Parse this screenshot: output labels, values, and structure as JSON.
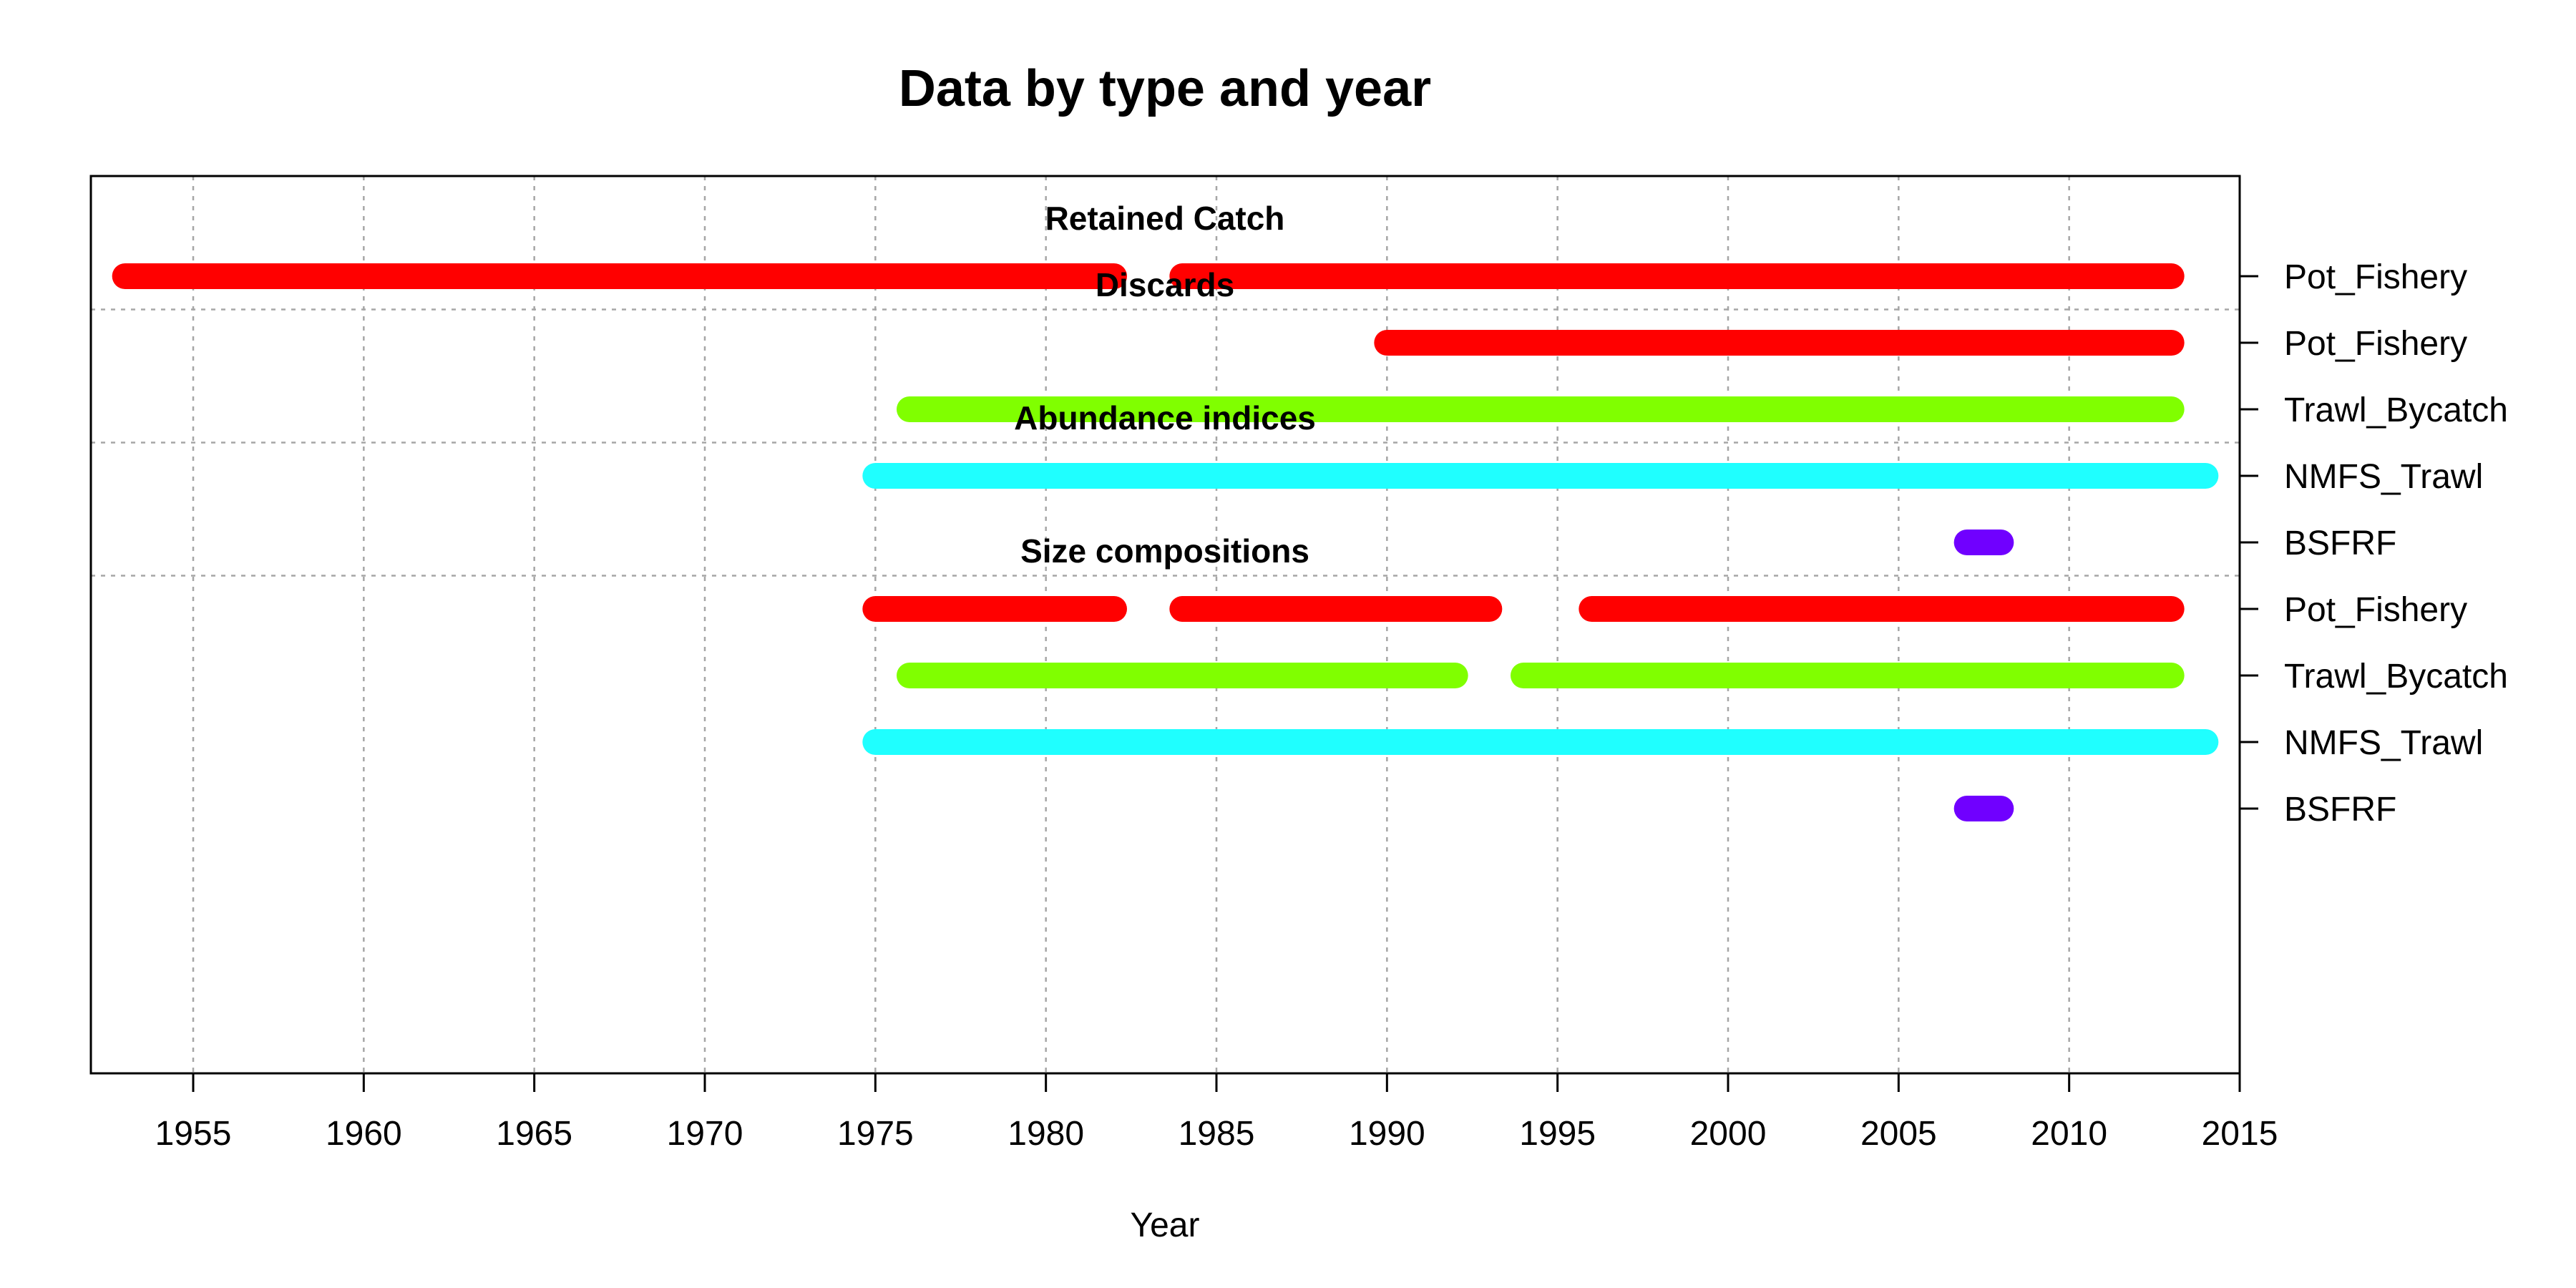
{
  "chart_data": {
    "type": "bar",
    "title": "Data by type and year",
    "xlabel": "Year",
    "ylabel": "",
    "xlim": [
      1952,
      2015
    ],
    "x_ticks": [
      1955,
      1960,
      1965,
      1970,
      1975,
      1980,
      1985,
      1990,
      1995,
      2000,
      2005,
      2010,
      2015
    ],
    "grid": true,
    "colors": {
      "Pot_Fishery": "#ff0000",
      "Trawl_Bycatch": "#80ff00",
      "NMFS_Trawl": "#1fffff",
      "BSFRF": "#7000ff"
    },
    "sections": [
      {
        "title": "Retained Catch",
        "rows": [
          {
            "label": "Pot_Fishery",
            "segments": [
              [
                1953,
                1982
              ],
              [
                1984,
                2013
              ]
            ]
          }
        ]
      },
      {
        "title": "Discards",
        "rows": [
          {
            "label": "Pot_Fishery",
            "segments": [
              [
                1990,
                2013
              ]
            ]
          },
          {
            "label": "Trawl_Bycatch",
            "segments": [
              [
                1976,
                2013
              ]
            ]
          }
        ]
      },
      {
        "title": "Abundance indices",
        "rows": [
          {
            "label": "NMFS_Trawl",
            "segments": [
              [
                1975,
                2014
              ]
            ]
          },
          {
            "label": "BSFRF",
            "segments": [
              [
                2007,
                2008
              ]
            ]
          }
        ]
      },
      {
        "title": "Size compositions",
        "rows": [
          {
            "label": "Pot_Fishery",
            "segments": [
              [
                1975,
                1982
              ],
              [
                1984,
                1993
              ],
              [
                1996,
                2013
              ]
            ]
          },
          {
            "label": "Trawl_Bycatch",
            "segments": [
              [
                1976,
                1992
              ],
              [
                1994,
                2013
              ]
            ]
          },
          {
            "label": "NMFS_Trawl",
            "segments": [
              [
                1975,
                2014
              ]
            ]
          },
          {
            "label": "BSFRF",
            "segments": [
              [
                2007,
                2008
              ]
            ]
          }
        ]
      }
    ]
  }
}
